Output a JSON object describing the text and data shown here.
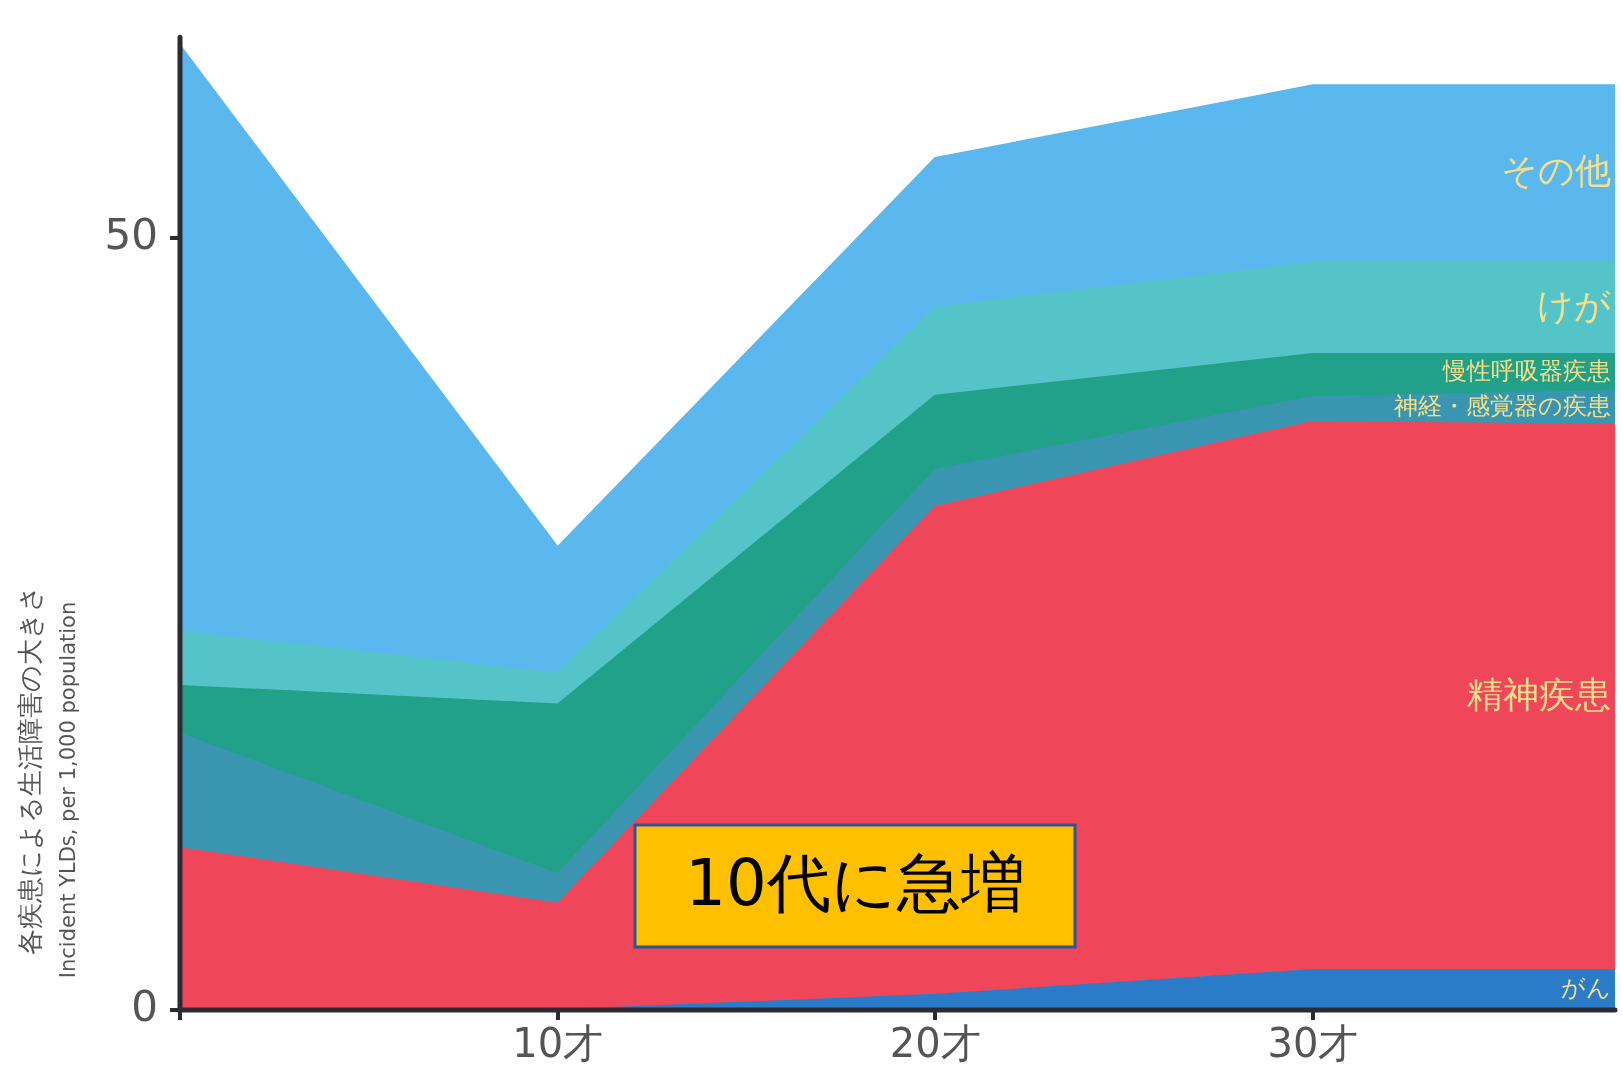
{
  "chart_data": {
    "type": "area",
    "stacked": true,
    "ylabel": "各疾患による生活障害の大きさ",
    "x": [
      0,
      10,
      20,
      30,
      38
    ],
    "xlim": [
      0,
      38
    ],
    "xticks": [
      {
        "value": 0,
        "label": null
      },
      {
        "value": 10,
        "label": "10才"
      },
      {
        "value": 20,
        "label": "20才"
      },
      {
        "value": 30,
        "label": "30才"
      }
    ],
    "ylim": [
      0,
      63
    ],
    "yticks": [
      0,
      50
    ],
    "grid": false,
    "legend": false,
    "marker": "none",
    "series": [
      {
        "name": "がん",
        "color": "#2a7cc8",
        "values": [
          0,
          0,
          1.0,
          2.6,
          2.6
        ]
      },
      {
        "name": "精神疾患",
        "color": "#f0465a",
        "values": [
          10.5,
          6.9,
          31.6,
          35.5,
          35.3
        ]
      },
      {
        "name": "神経・感覚器の疾患",
        "color": "#3a96b0",
        "values": [
          7.4,
          1.9,
          2.4,
          1.6,
          2.2
        ]
      },
      {
        "name": "慢性呼吸器疾患",
        "color": "#21a08a",
        "values": [
          3.1,
          11.0,
          4.8,
          2.8,
          2.4
        ]
      },
      {
        "name": "けが",
        "color": "#55c4c8",
        "values": [
          3.5,
          2.0,
          5.7,
          5.9,
          5.9
        ]
      },
      {
        "name": "その他",
        "color": "#5bb8ef",
        "values": [
          38.0,
          8.2,
          9.7,
          11.5,
          11.5
        ]
      }
    ],
    "annotations": [
      "10代に急増",
      "Incident YLDs, per 1,000 population"
    ]
  }
}
